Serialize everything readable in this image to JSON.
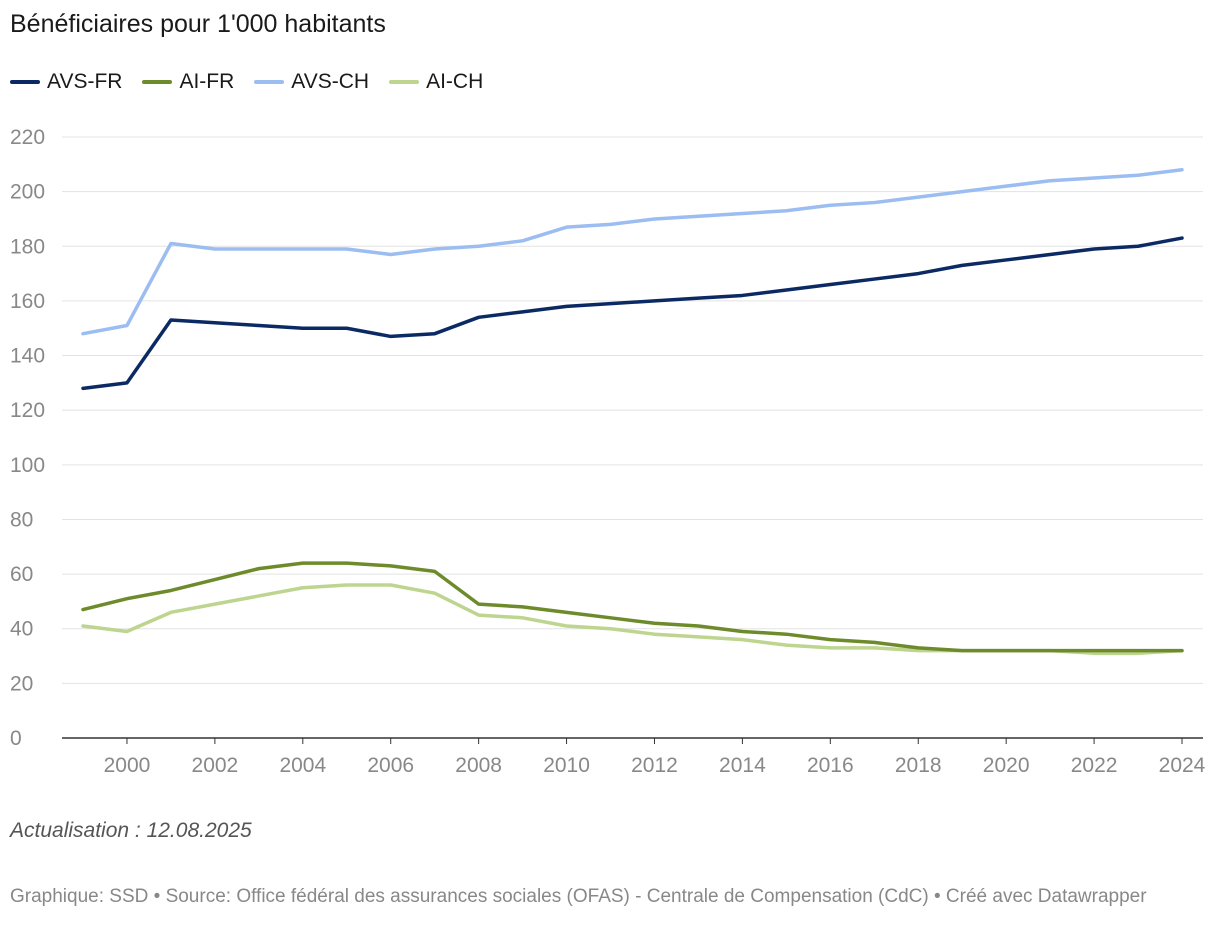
{
  "chart_data": {
    "type": "line",
    "title": "Bénéficiaires pour 1'000 habitants",
    "xlabel": "",
    "ylabel": "",
    "x": [
      1999,
      2000,
      2001,
      2002,
      2003,
      2004,
      2005,
      2006,
      2007,
      2008,
      2009,
      2010,
      2011,
      2012,
      2013,
      2014,
      2015,
      2016,
      2017,
      2018,
      2019,
      2020,
      2021,
      2022,
      2023,
      2024
    ],
    "xticks": [
      "2000",
      "2002",
      "2004",
      "2006",
      "2008",
      "2010",
      "2012",
      "2014",
      "2016",
      "2018",
      "2020",
      "2022",
      "2024"
    ],
    "yticks": [
      "0",
      "20",
      "40",
      "60",
      "80",
      "100",
      "120",
      "140",
      "160",
      "180",
      "200",
      "220"
    ],
    "ylim": [
      0,
      220
    ],
    "xlim": [
      1999,
      2024
    ],
    "grid": true,
    "legend_position": "top-left",
    "series": [
      {
        "name": "AVS-FR",
        "color": "#0b2a64",
        "values": [
          128,
          130,
          153,
          152,
          151,
          150,
          150,
          147,
          148,
          154,
          156,
          158,
          159,
          160,
          161,
          162,
          164,
          166,
          168,
          170,
          173,
          175,
          177,
          179,
          180,
          183
        ]
      },
      {
        "name": "AI-FR",
        "color": "#6e8b2b",
        "values": [
          47,
          51,
          54,
          58,
          62,
          64,
          64,
          63,
          61,
          49,
          48,
          46,
          44,
          42,
          41,
          39,
          38,
          36,
          35,
          33,
          32,
          32,
          32,
          32,
          32,
          32
        ]
      },
      {
        "name": "AVS-CH",
        "color": "#9bbdf2",
        "values": [
          148,
          151,
          181,
          179,
          179,
          179,
          179,
          177,
          179,
          180,
          182,
          187,
          188,
          190,
          191,
          192,
          193,
          195,
          196,
          198,
          200,
          202,
          204,
          205,
          206,
          208
        ]
      },
      {
        "name": "AI-CH",
        "color": "#bdd58f",
        "values": [
          41,
          39,
          46,
          49,
          52,
          55,
          56,
          56,
          53,
          45,
          44,
          41,
          40,
          38,
          37,
          36,
          34,
          33,
          33,
          32,
          32,
          32,
          32,
          31,
          31,
          32
        ]
      }
    ]
  },
  "note": "Actualisation : 12.08.2025",
  "footer": "Graphique: SSD • Source: Office fédéral des assurances sociales (OFAS) - Centrale de Compensation (CdC) • Créé avec Datawrapper"
}
